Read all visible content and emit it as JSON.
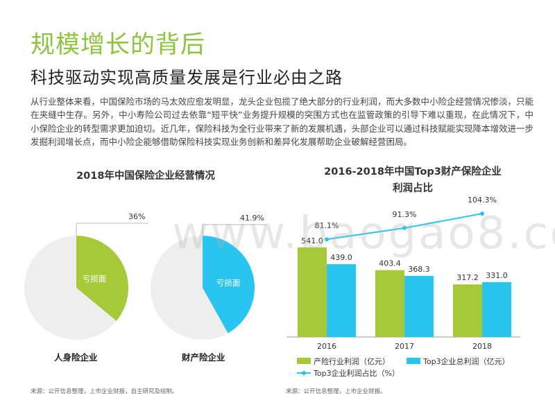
{
  "header": {
    "title": "规模增长的背后",
    "subtitle": "科技驱动实现高质量发展是行业必由之路"
  },
  "intro": "从行业整体来看，中国保险市场的马太效应愈发明显，龙头企业包揽了绝大部分的行业利润，而大多数中小险企经营情况惨淡，只能在夹缝中生存。另外，中小寿险公司过去依靠“短平快”业务提升规模的突围方式也在监管政策的引导下难以重现，在此情况下，中小保险企业的转型需求更加迫切。近几年，保险科技为全行业带来了新的发展机遇，头部企业可以通过科技赋能实现降本增效进一步发掘利润增长点，而中小险企能够借助保险科技实现业务创新和差异化发展帮助企业破解经营困局。",
  "watermark": "www.baogao8.com",
  "colors": {
    "green": "#a6c93a",
    "blue": "#29c4f0",
    "grey": "#eeeeee",
    "title_green": "#8cc63f"
  },
  "chart_data": [
    {
      "type": "pie",
      "title": "2018年中国保险企业经营情况",
      "slice_label": "亏损面",
      "pies": [
        {
          "name": "人身险企业",
          "loss_share": 36,
          "label": "36%",
          "color": "#a6c93a"
        },
        {
          "name": "财产险企业",
          "loss_share": 41.9,
          "label": "41.9%",
          "color": "#29c4f0"
        }
      ],
      "source": "来源：公开信息整理，上市企业财报，自主研究及绘制。"
    },
    {
      "type": "bar",
      "title_lines": [
        "2016-2018年中国Top3财产保险企业",
        "利润占比"
      ],
      "categories": [
        "2016",
        "2017",
        "2018"
      ],
      "series": [
        {
          "name": "产险行业利润（亿元）",
          "type": "bar",
          "values": [
            541.0,
            403.4,
            317.2
          ],
          "labels": [
            "541.0",
            "403.4",
            "317.2"
          ],
          "color": "#a6c93a"
        },
        {
          "name": "Top3企业总利润（亿元）",
          "type": "bar",
          "values": [
            439.0,
            368.3,
            331.0
          ],
          "labels": [
            "439.0",
            "368.3",
            "331.0"
          ],
          "color": "#29c4f0"
        },
        {
          "name": "Top3企业利润占比（%）",
          "type": "line",
          "values": [
            81.1,
            91.3,
            104.3
          ],
          "labels": [
            "81.1%",
            "91.3%",
            "104.3%"
          ],
          "color": "#29c4f0"
        }
      ],
      "ylim": [
        0,
        900
      ],
      "y2lim": [
        0,
        125
      ],
      "source": "来源：公开信息整理，上市企业财报。"
    }
  ]
}
